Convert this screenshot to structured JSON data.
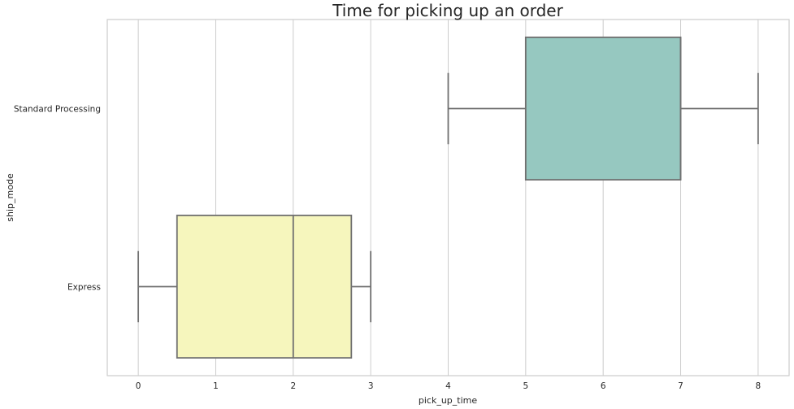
{
  "chart_data": {
    "type": "boxplot",
    "orientation": "horizontal",
    "title": "Time for picking up an order",
    "xlabel": "pick_up_time",
    "ylabel": "ship_mode",
    "xlim": [
      -0.4,
      8.4
    ],
    "xticks": [
      0,
      1,
      2,
      3,
      4,
      5,
      6,
      7,
      8
    ],
    "grid": "vertical",
    "categories": [
      "Standard Processing",
      "Express"
    ],
    "series": [
      {
        "category": "Standard Processing",
        "min": 4,
        "q1": 5,
        "median": 7,
        "q3": 7,
        "max": 8,
        "color": "#96c8c0"
      },
      {
        "category": "Express",
        "min": 0,
        "q1": 0.5,
        "median": 2,
        "q3": 2.75,
        "max": 3,
        "color": "#f6f6bd"
      }
    ]
  }
}
